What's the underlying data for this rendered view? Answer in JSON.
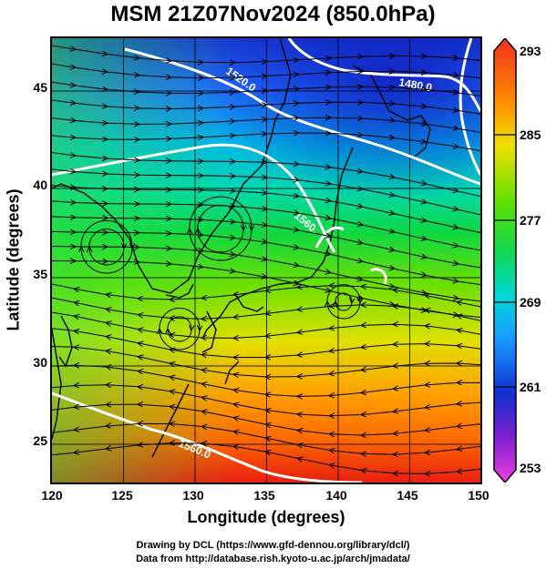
{
  "title": "MSM 21Z07Nov2024 (850.0hPa)",
  "x_axis": {
    "label": "Longitude (degrees)",
    "ticks": [
      "120",
      "125",
      "130",
      "135",
      "140",
      "145",
      "150"
    ],
    "range": [
      120,
      150
    ]
  },
  "y_axis": {
    "label": "Latitude  (degrees)",
    "ticks": [
      "25",
      "30",
      "35",
      "40",
      "45"
    ],
    "range": [
      22.4,
      47.6
    ]
  },
  "colorbar": {
    "ticks": [
      "293",
      "285",
      "277",
      "269",
      "261",
      "253"
    ],
    "range": [
      253,
      293
    ],
    "colors": [
      "#e8002a",
      "#ff8a00",
      "#d8e000",
      "#18d830",
      "#00d8d0",
      "#1880ff",
      "#1010c0",
      "#e020d0"
    ]
  },
  "contours": {
    "labels": [
      "1520.0",
      "1480.0",
      "1560.",
      "1560.0"
    ],
    "color": "#ffffff"
  },
  "credits": [
    "Drawing by DCL (https://www.gfd-dennou.org/library/dcl/)",
    "Data from http://database.rish.kyoto-u.ac.jp/arch/jmadata/"
  ]
}
